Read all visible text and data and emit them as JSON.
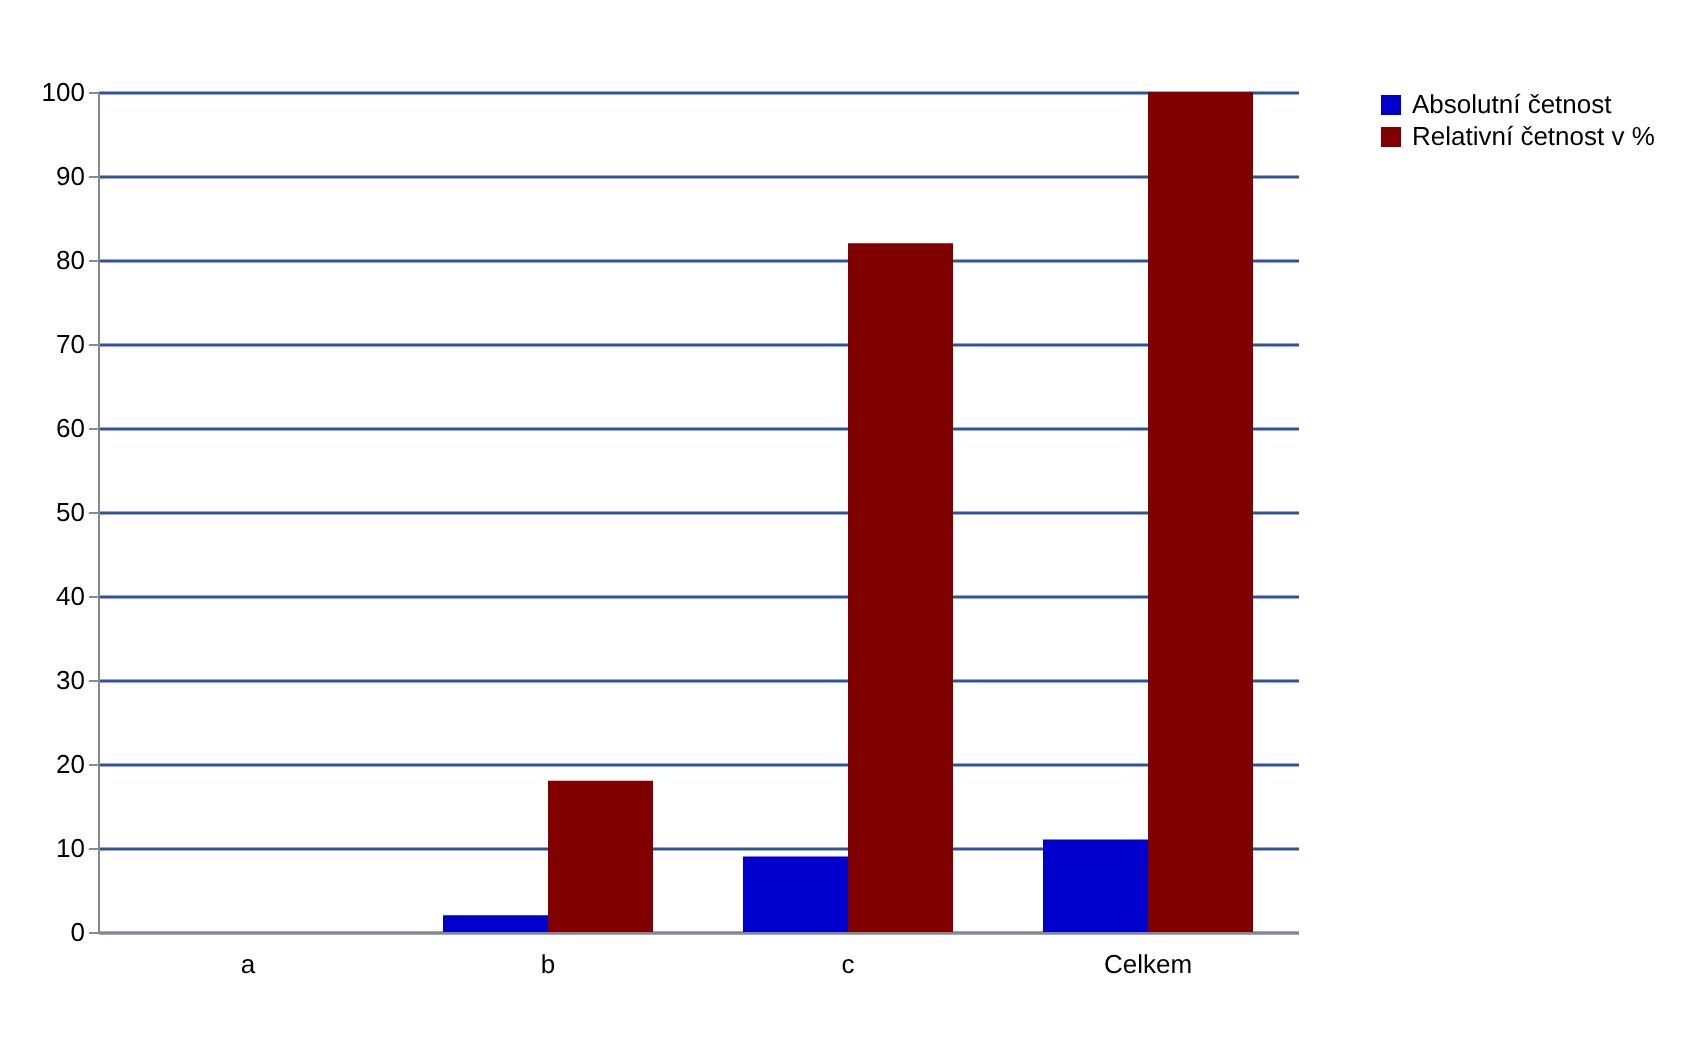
{
  "chart_data": {
    "type": "bar",
    "categories": [
      "a",
      "b",
      "c",
      "Celkem"
    ],
    "series": [
      {
        "name": "Absolutní četnost",
        "color": "#0000cc",
        "values": [
          0,
          2,
          9,
          11
        ]
      },
      {
        "name": "Relativní četnost v %",
        "color": "#800000",
        "values": [
          0,
          18,
          82,
          100
        ]
      }
    ],
    "ylim": [
      0,
      100
    ],
    "yticks": [
      0,
      10,
      20,
      30,
      40,
      50,
      60,
      70,
      80,
      90,
      100
    ],
    "grid": "y",
    "legend": "right"
  }
}
